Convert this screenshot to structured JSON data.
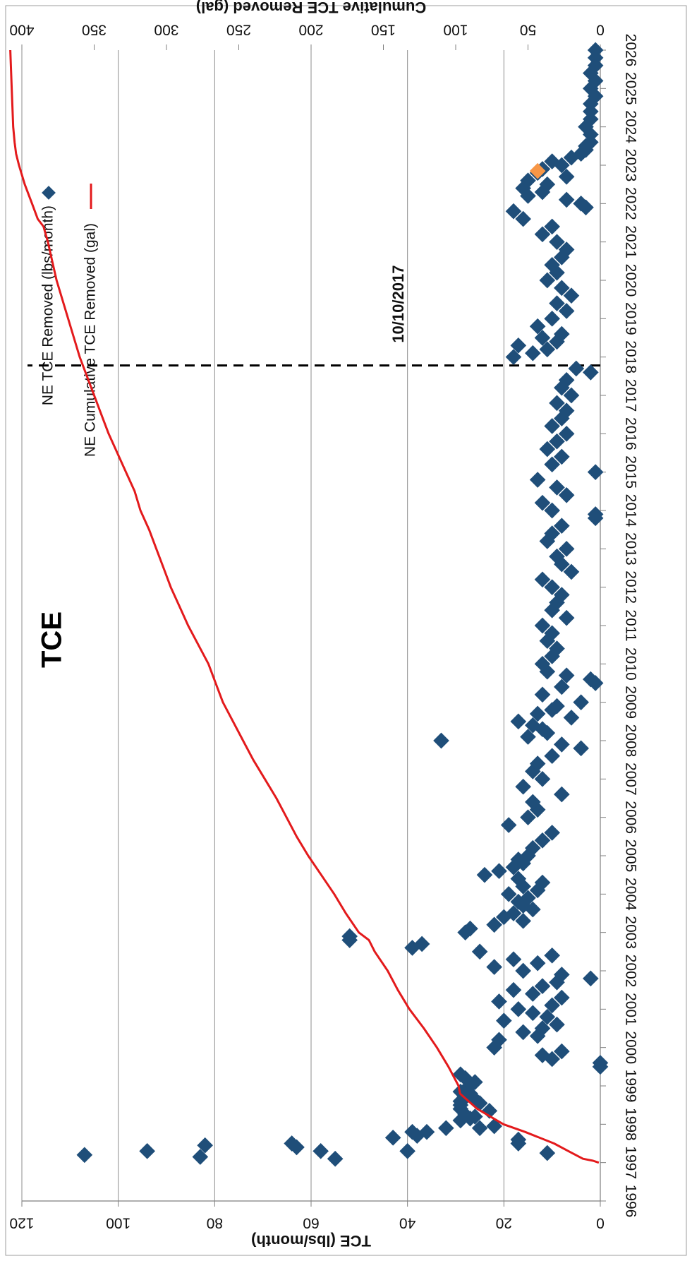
{
  "chart_data": {
    "type": "scatter",
    "title": "TCE",
    "x_axis": {
      "min": 1996,
      "max": 2026,
      "ticks": [
        "1996",
        "1997",
        "1998",
        "1999",
        "2000",
        "2001",
        "2002",
        "2003",
        "2004",
        "2005",
        "2006",
        "2007",
        "2008",
        "2009",
        "2010",
        "2011",
        "2012",
        "2013",
        "2014",
        "2015",
        "2016",
        "2017",
        "2018",
        "2019",
        "2020",
        "2021",
        "2022",
        "2023",
        "2024",
        "2025",
        "2026"
      ]
    },
    "y_axis_left": {
      "label": "TCE (lbs/month)",
      "min": 0,
      "max": 120,
      "ticks": [
        "0",
        "20",
        "40",
        "60",
        "80",
        "100",
        "120"
      ]
    },
    "y_axis_right": {
      "label": "Cumulative TCE Removed (gal)",
      "min": 0,
      "max": 400,
      "ticks": [
        "0",
        "50",
        "100",
        "150",
        "200",
        "250",
        "300",
        "350",
        "400"
      ]
    },
    "grid": true,
    "legend": {
      "placement": "top-left",
      "entries": [
        "NE TCE Removed (lbs/month)",
        "NE Cumulative TCE Removed (gal)"
      ]
    },
    "annotation": {
      "label": "10/10/2017",
      "x": 2017.78
    },
    "colors": {
      "scatter": "#1f4e79",
      "cumulative": "#e31a1c",
      "highlight": "#f79646",
      "annotation": "#000000"
    },
    "highlight_point": {
      "x": 2022.85,
      "y": 13
    },
    "series": [
      {
        "name": "NE TCE Removed (lbs/month)",
        "type": "scatter",
        "points": [
          [
            1997.2,
            107
          ],
          [
            1997.15,
            83
          ],
          [
            1997.3,
            94
          ],
          [
            1997.45,
            82
          ],
          [
            1997.1,
            55
          ],
          [
            1997.4,
            63
          ],
          [
            1997.5,
            64
          ],
          [
            1997.3,
            58
          ],
          [
            1997.3,
            40
          ],
          [
            1997.25,
            11
          ],
          [
            1997.65,
            43
          ],
          [
            1997.5,
            17
          ],
          [
            1997.6,
            17
          ],
          [
            1997.7,
            38
          ],
          [
            1997.8,
            36
          ],
          [
            1997.8,
            39
          ],
          [
            1997.9,
            25
          ],
          [
            1997.95,
            22
          ],
          [
            1997.9,
            32
          ],
          [
            1998.1,
            29
          ],
          [
            1998.15,
            27
          ],
          [
            1998.2,
            26
          ],
          [
            1998.25,
            28
          ],
          [
            1998.35,
            23
          ],
          [
            1998.4,
            29
          ],
          [
            1998.5,
            29
          ],
          [
            1998.55,
            25
          ],
          [
            1998.6,
            29
          ],
          [
            1998.65,
            26
          ],
          [
            1998.7,
            28
          ],
          [
            1998.8,
            27
          ],
          [
            1998.85,
            29
          ],
          [
            1998.9,
            28
          ],
          [
            1999.0,
            27
          ],
          [
            1999.1,
            26
          ],
          [
            1999.2,
            28
          ],
          [
            1999.3,
            29
          ],
          [
            1999.5,
            0
          ],
          [
            1999.6,
            0
          ],
          [
            1999.7,
            10
          ],
          [
            1999.8,
            12
          ],
          [
            1999.9,
            8
          ],
          [
            2000.0,
            22
          ],
          [
            2000.2,
            21
          ],
          [
            2000.3,
            13
          ],
          [
            2000.4,
            16
          ],
          [
            2000.5,
            12
          ],
          [
            2000.6,
            9
          ],
          [
            2000.7,
            20
          ],
          [
            2000.8,
            11
          ],
          [
            2000.9,
            14
          ],
          [
            2001.0,
            17
          ],
          [
            2001.1,
            10
          ],
          [
            2001.2,
            21
          ],
          [
            2001.3,
            8
          ],
          [
            2001.4,
            14
          ],
          [
            2001.5,
            18
          ],
          [
            2001.6,
            12
          ],
          [
            2001.7,
            9
          ],
          [
            2001.8,
            2
          ],
          [
            2001.9,
            8
          ],
          [
            2002.0,
            16
          ],
          [
            2002.1,
            22
          ],
          [
            2002.2,
            13
          ],
          [
            2002.3,
            18
          ],
          [
            2002.4,
            10
          ],
          [
            2002.5,
            25
          ],
          [
            2002.6,
            39
          ],
          [
            2002.7,
            37
          ],
          [
            2002.8,
            52
          ],
          [
            2002.9,
            52
          ],
          [
            2003.0,
            28
          ],
          [
            2003.1,
            27
          ],
          [
            2003.2,
            22
          ],
          [
            2003.3,
            16
          ],
          [
            2003.4,
            20
          ],
          [
            2003.5,
            18
          ],
          [
            2003.6,
            14
          ],
          [
            2003.7,
            16
          ],
          [
            2003.8,
            17
          ],
          [
            2003.9,
            15
          ],
          [
            2004.0,
            19
          ],
          [
            2004.1,
            13
          ],
          [
            2004.2,
            16
          ],
          [
            2004.3,
            12
          ],
          [
            2004.4,
            17
          ],
          [
            2004.5,
            24
          ],
          [
            2004.6,
            21
          ],
          [
            2004.7,
            18
          ],
          [
            2004.8,
            16
          ],
          [
            2004.9,
            17
          ],
          [
            2005.0,
            15
          ],
          [
            2005.2,
            14
          ],
          [
            2005.4,
            12
          ],
          [
            2005.6,
            10
          ],
          [
            2005.8,
            19
          ],
          [
            2006.0,
            15
          ],
          [
            2006.2,
            13
          ],
          [
            2006.4,
            14
          ],
          [
            2006.6,
            8
          ],
          [
            2006.8,
            16
          ],
          [
            2007.0,
            12
          ],
          [
            2007.2,
            14
          ],
          [
            2007.4,
            13
          ],
          [
            2007.6,
            10
          ],
          [
            2007.8,
            4
          ],
          [
            2007.9,
            8
          ],
          [
            2008.0,
            33
          ],
          [
            2008.1,
            15
          ],
          [
            2008.2,
            11
          ],
          [
            2008.3,
            12
          ],
          [
            2008.4,
            14
          ],
          [
            2008.5,
            17
          ],
          [
            2008.6,
            6
          ],
          [
            2008.7,
            13
          ],
          [
            2008.8,
            10
          ],
          [
            2008.9,
            9
          ],
          [
            2009.0,
            4
          ],
          [
            2009.2,
            12
          ],
          [
            2009.4,
            8
          ],
          [
            2009.5,
            1
          ],
          [
            2009.6,
            2
          ],
          [
            2009.7,
            7
          ],
          [
            2009.8,
            11
          ],
          [
            2010.0,
            12
          ],
          [
            2010.2,
            10
          ],
          [
            2010.4,
            9
          ],
          [
            2010.6,
            11
          ],
          [
            2010.8,
            10
          ],
          [
            2011.0,
            12
          ],
          [
            2011.2,
            7
          ],
          [
            2011.4,
            10
          ],
          [
            2011.6,
            9
          ],
          [
            2011.8,
            8
          ],
          [
            2012.0,
            10
          ],
          [
            2012.2,
            12
          ],
          [
            2012.4,
            6
          ],
          [
            2012.6,
            8
          ],
          [
            2012.8,
            9
          ],
          [
            2013.0,
            7
          ],
          [
            2013.2,
            11
          ],
          [
            2013.4,
            10
          ],
          [
            2013.6,
            8
          ],
          [
            2013.8,
            1
          ],
          [
            2013.9,
            1
          ],
          [
            2014.0,
            10
          ],
          [
            2014.2,
            12
          ],
          [
            2014.4,
            7
          ],
          [
            2014.6,
            9
          ],
          [
            2014.8,
            13
          ],
          [
            2015.0,
            1
          ],
          [
            2015.2,
            10
          ],
          [
            2015.4,
            8
          ],
          [
            2015.6,
            11
          ],
          [
            2015.8,
            9
          ],
          [
            2016.0,
            7
          ],
          [
            2016.2,
            10
          ],
          [
            2016.4,
            8
          ],
          [
            2016.6,
            7
          ],
          [
            2016.8,
            9
          ],
          [
            2017.0,
            6
          ],
          [
            2017.2,
            8
          ],
          [
            2017.4,
            7
          ],
          [
            2017.6,
            2
          ],
          [
            2017.7,
            5
          ],
          [
            2018.0,
            18
          ],
          [
            2018.1,
            14
          ],
          [
            2018.2,
            11
          ],
          [
            2018.3,
            17
          ],
          [
            2018.4,
            9
          ],
          [
            2018.5,
            12
          ],
          [
            2018.6,
            8
          ],
          [
            2018.8,
            13
          ],
          [
            2019.0,
            10
          ],
          [
            2019.2,
            7
          ],
          [
            2019.4,
            9
          ],
          [
            2019.6,
            6
          ],
          [
            2019.8,
            8
          ],
          [
            2020.0,
            11
          ],
          [
            2020.2,
            9
          ],
          [
            2020.4,
            10
          ],
          [
            2020.6,
            8
          ],
          [
            2020.8,
            7
          ],
          [
            2021.0,
            9
          ],
          [
            2021.2,
            12
          ],
          [
            2021.4,
            10
          ],
          [
            2021.6,
            16
          ],
          [
            2021.8,
            18
          ],
          [
            2021.9,
            3
          ],
          [
            2022.0,
            4
          ],
          [
            2022.1,
            7
          ],
          [
            2022.2,
            15
          ],
          [
            2022.3,
            12
          ],
          [
            2022.4,
            16
          ],
          [
            2022.5,
            11
          ],
          [
            2022.6,
            15
          ],
          [
            2022.7,
            7
          ],
          [
            2022.8,
            13
          ],
          [
            2022.9,
            12
          ],
          [
            2023.0,
            8
          ],
          [
            2023.1,
            10
          ],
          [
            2023.2,
            6
          ],
          [
            2023.3,
            4
          ],
          [
            2023.4,
            3
          ],
          [
            2023.5,
            3
          ],
          [
            2023.6,
            2
          ],
          [
            2023.8,
            2
          ],
          [
            2024.0,
            3
          ],
          [
            2024.2,
            2
          ],
          [
            2024.4,
            2
          ],
          [
            2024.6,
            2
          ],
          [
            2024.8,
            1
          ],
          [
            2025.0,
            2
          ],
          [
            2025.2,
            1
          ],
          [
            2025.4,
            2
          ],
          [
            2025.6,
            1
          ],
          [
            2025.8,
            1
          ],
          [
            2026.0,
            1
          ]
        ]
      },
      {
        "name": "NE Cumulative TCE Removed (gal)",
        "type": "line",
        "axis": "right",
        "points": [
          [
            1997.0,
            1
          ],
          [
            1997.05,
            5
          ],
          [
            1997.1,
            12
          ],
          [
            1997.3,
            22
          ],
          [
            1997.5,
            32
          ],
          [
            1997.8,
            52
          ],
          [
            1998.0,
            67
          ],
          [
            1998.4,
            85
          ],
          [
            1998.8,
            97
          ],
          [
            1999.0,
            98
          ],
          [
            1999.5,
            105
          ],
          [
            2000.0,
            113
          ],
          [
            2000.5,
            122
          ],
          [
            2001.0,
            132
          ],
          [
            2001.5,
            140
          ],
          [
            2002.0,
            147
          ],
          [
            2002.5,
            156
          ],
          [
            2002.8,
            160
          ],
          [
            2003.0,
            167
          ],
          [
            2003.5,
            176
          ],
          [
            2004.0,
            184
          ],
          [
            2004.5,
            193
          ],
          [
            2005.0,
            202
          ],
          [
            2005.5,
            210
          ],
          [
            2006.0,
            217
          ],
          [
            2006.5,
            224
          ],
          [
            2007.0,
            232
          ],
          [
            2007.5,
            240
          ],
          [
            2008.0,
            247
          ],
          [
            2008.5,
            254
          ],
          [
            2009.0,
            261
          ],
          [
            2009.5,
            266
          ],
          [
            2010.0,
            271
          ],
          [
            2010.5,
            278
          ],
          [
            2011.0,
            285
          ],
          [
            2011.5,
            291
          ],
          [
            2012.0,
            297
          ],
          [
            2012.5,
            302
          ],
          [
            2013.0,
            307
          ],
          [
            2013.5,
            312
          ],
          [
            2014.0,
            318
          ],
          [
            2014.5,
            322
          ],
          [
            2015.0,
            328
          ],
          [
            2015.5,
            334
          ],
          [
            2016.0,
            340
          ],
          [
            2016.5,
            345
          ],
          [
            2017.0,
            350
          ],
          [
            2017.5,
            355
          ],
          [
            2017.8,
            358
          ],
          [
            2018.0,
            360
          ],
          [
            2018.5,
            364
          ],
          [
            2019.0,
            368
          ],
          [
            2019.5,
            372
          ],
          [
            2020.0,
            376
          ],
          [
            2020.5,
            379
          ],
          [
            2021.0,
            382
          ],
          [
            2021.4,
            385
          ],
          [
            2021.6,
            389
          ],
          [
            2022.0,
            393
          ],
          [
            2022.5,
            398
          ],
          [
            2023.0,
            402
          ],
          [
            2023.3,
            404
          ],
          [
            2023.6,
            405
          ],
          [
            2024.0,
            406
          ],
          [
            2025.0,
            407
          ],
          [
            2026.0,
            408
          ]
        ]
      }
    ]
  }
}
